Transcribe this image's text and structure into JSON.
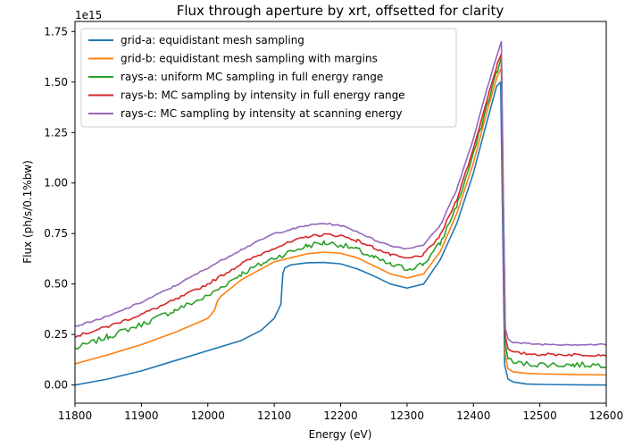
{
  "chart_data": {
    "type": "line",
    "title": "Flux through aperture by xrt, offsetted for clarity",
    "xlabel": "Energy (eV)",
    "ylabel": "Flux (ph/s/0.1%bw)",
    "y_multiplier_label": "1e15",
    "xlim": [
      11800,
      12600
    ],
    "ylim": [
      -0.09,
      1.8
    ],
    "x_ticks": [
      11800,
      11900,
      12000,
      12100,
      12200,
      12300,
      12400,
      12500,
      12600
    ],
    "x_tick_labels": [
      "11800",
      "11900",
      "12000",
      "12100",
      "12200",
      "12300",
      "12400",
      "12500",
      "12600"
    ],
    "y_ticks": [
      0,
      0.25,
      0.5,
      0.75,
      1.0,
      1.25,
      1.5,
      1.75
    ],
    "y_tick_labels": [
      "0.00",
      "0.25",
      "0.50",
      "0.75",
      "1.00",
      "1.25",
      "1.50",
      "1.75"
    ],
    "grid": false,
    "legend_position": "top-left",
    "series": [
      {
        "name": "grid-a: equidistant mesh sampling",
        "color": "#1f77b4",
        "noise": 0,
        "x": [
          11800,
          11850,
          11900,
          11950,
          12000,
          12050,
          12080,
          12100,
          12110,
          12113,
          12116,
          12125,
          12150,
          12175,
          12200,
          12225,
          12250,
          12275,
          12300,
          12325,
          12350,
          12375,
          12400,
          12420,
          12435,
          12441,
          12444,
          12447,
          12452,
          12460,
          12480,
          12500,
          12550,
          12600
        ],
        "y": [
          0.0,
          0.03,
          0.07,
          0.12,
          0.17,
          0.22,
          0.27,
          0.33,
          0.4,
          0.55,
          0.58,
          0.595,
          0.605,
          0.607,
          0.6,
          0.575,
          0.54,
          0.5,
          0.48,
          0.5,
          0.62,
          0.8,
          1.05,
          1.3,
          1.48,
          1.5,
          0.8,
          0.1,
          0.03,
          0.015,
          0.005,
          0.003,
          0.001,
          0.0
        ]
      },
      {
        "name": "grid-b: equidistant mesh sampling with margins",
        "color": "#ff7f0e",
        "noise": 0,
        "x": [
          11800,
          11850,
          11900,
          11950,
          12000,
          12010,
          12015,
          12020,
          12050,
          12100,
          12150,
          12175,
          12200,
          12225,
          12250,
          12275,
          12300,
          12325,
          12350,
          12375,
          12400,
          12420,
          12435,
          12442,
          12445,
          12448,
          12452,
          12460,
          12480,
          12500,
          12550,
          12600
        ],
        "y": [
          0.105,
          0.15,
          0.2,
          0.26,
          0.33,
          0.37,
          0.42,
          0.44,
          0.52,
          0.61,
          0.65,
          0.658,
          0.652,
          0.63,
          0.59,
          0.55,
          0.53,
          0.55,
          0.66,
          0.85,
          1.1,
          1.35,
          1.52,
          1.57,
          0.8,
          0.15,
          0.08,
          0.065,
          0.058,
          0.055,
          0.052,
          0.05
        ]
      },
      {
        "name": "rays-a: uniform MC sampling in full energy range",
        "color": "#2ca02c",
        "noise": 0.014,
        "x": [
          11800,
          11850,
          11900,
          11950,
          12000,
          12050,
          12100,
          12150,
          12175,
          12200,
          12225,
          12250,
          12275,
          12300,
          12325,
          12350,
          12375,
          12400,
          12420,
          12435,
          12442,
          12445,
          12448,
          12452,
          12460,
          12480,
          12500,
          12550,
          12600
        ],
        "y": [
          0.18,
          0.24,
          0.3,
          0.37,
          0.44,
          0.55,
          0.63,
          0.69,
          0.705,
          0.695,
          0.67,
          0.63,
          0.595,
          0.575,
          0.6,
          0.7,
          0.89,
          1.14,
          1.38,
          1.55,
          1.62,
          0.85,
          0.2,
          0.13,
          0.11,
          0.105,
          0.102,
          0.1,
          0.1
        ]
      },
      {
        "name": "rays-b: MC sampling by intensity in full energy range",
        "color": "#d62728",
        "noise": 0.007,
        "x": [
          11800,
          11850,
          11900,
          11950,
          12000,
          12050,
          12100,
          12150,
          12175,
          12200,
          12225,
          12250,
          12275,
          12300,
          12325,
          12350,
          12375,
          12400,
          12420,
          12435,
          12442,
          12445,
          12448,
          12452,
          12460,
          12480,
          12500,
          12550,
          12600
        ],
        "y": [
          0.24,
          0.29,
          0.35,
          0.42,
          0.5,
          0.6,
          0.68,
          0.735,
          0.745,
          0.74,
          0.715,
          0.68,
          0.645,
          0.625,
          0.645,
          0.74,
          0.92,
          1.17,
          1.41,
          1.58,
          1.64,
          0.9,
          0.24,
          0.18,
          0.16,
          0.155,
          0.152,
          0.15,
          0.15
        ]
      },
      {
        "name": "rays-c: MC sampling by intensity at scanning energy",
        "color": "#9467bd",
        "noise": 0.004,
        "x": [
          11800,
          11850,
          11900,
          11950,
          12000,
          12050,
          12100,
          12150,
          12175,
          12200,
          12225,
          12250,
          12275,
          12300,
          12325,
          12350,
          12375,
          12400,
          12420,
          12435,
          12442,
          12445,
          12448,
          12452,
          12460,
          12480,
          12500,
          12550,
          12600
        ],
        "y": [
          0.29,
          0.34,
          0.41,
          0.49,
          0.58,
          0.67,
          0.75,
          0.79,
          0.8,
          0.79,
          0.76,
          0.72,
          0.69,
          0.675,
          0.695,
          0.79,
          0.97,
          1.22,
          1.46,
          1.63,
          1.7,
          0.95,
          0.28,
          0.23,
          0.21,
          0.205,
          0.202,
          0.2,
          0.2
        ]
      }
    ]
  }
}
